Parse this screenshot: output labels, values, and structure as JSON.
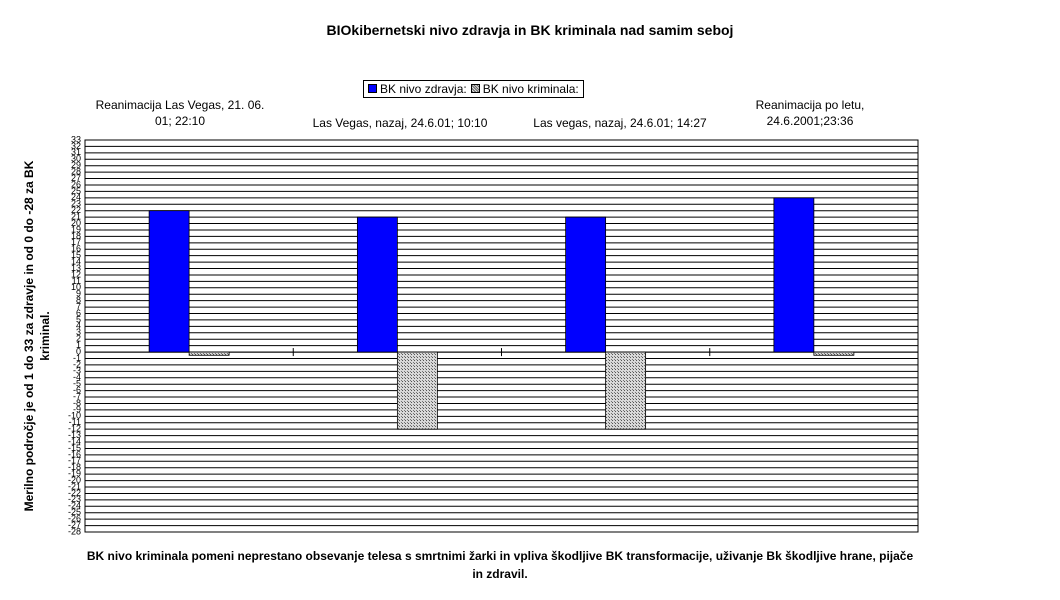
{
  "chart_data": {
    "type": "bar",
    "title": "BIOkibernetski nivo zdravja in BK kriminala nad samim seboj",
    "y_label": "Merilno področje je od 1 do 33 za zdravje in od 0 do -28 za BK kriminal.",
    "note": "BK nivo kriminala pomeni neprestano obsevanje telesa s smrtnimi žarki in vpliva škodljive BK transformacije, uživanje Bk škodljive hrane, pijače in zdravil.",
    "categories": [
      "Reanimacija Las Vegas,  21. 06. 01; 22:10",
      "Las Vegas, nazaj, 24.6.01; 10:10",
      "Las vegas, nazaj, 24.6.01; 14:27",
      "Reanimacija po letu, 24.6.2001;23:36"
    ],
    "series": [
      {
        "name": "BK nivo zdravja:",
        "color": "#0000ff",
        "values": [
          22,
          21,
          21,
          24
        ]
      },
      {
        "name": "BK nivo kriminala:",
        "color": "#b0b0b0",
        "values": [
          -0.5,
          -12,
          -12,
          -0.5
        ]
      }
    ],
    "ylim": [
      -28,
      33
    ],
    "yticks": [
      -28,
      -27,
      -26,
      -25,
      -24,
      -23,
      -22,
      -21,
      -20,
      -19,
      -18,
      -17,
      -16,
      -15,
      -14,
      -13,
      -12,
      -11,
      -10,
      -9,
      -8,
      -7,
      -6,
      -5,
      -4,
      -3,
      -2,
      -1,
      0,
      1,
      2,
      3,
      4,
      5,
      6,
      7,
      8,
      9,
      10,
      11,
      12,
      13,
      14,
      15,
      16,
      17,
      18,
      19,
      20,
      21,
      22,
      23,
      24,
      25,
      26,
      27,
      28,
      29,
      30,
      31,
      32,
      33
    ],
    "grid": true
  }
}
